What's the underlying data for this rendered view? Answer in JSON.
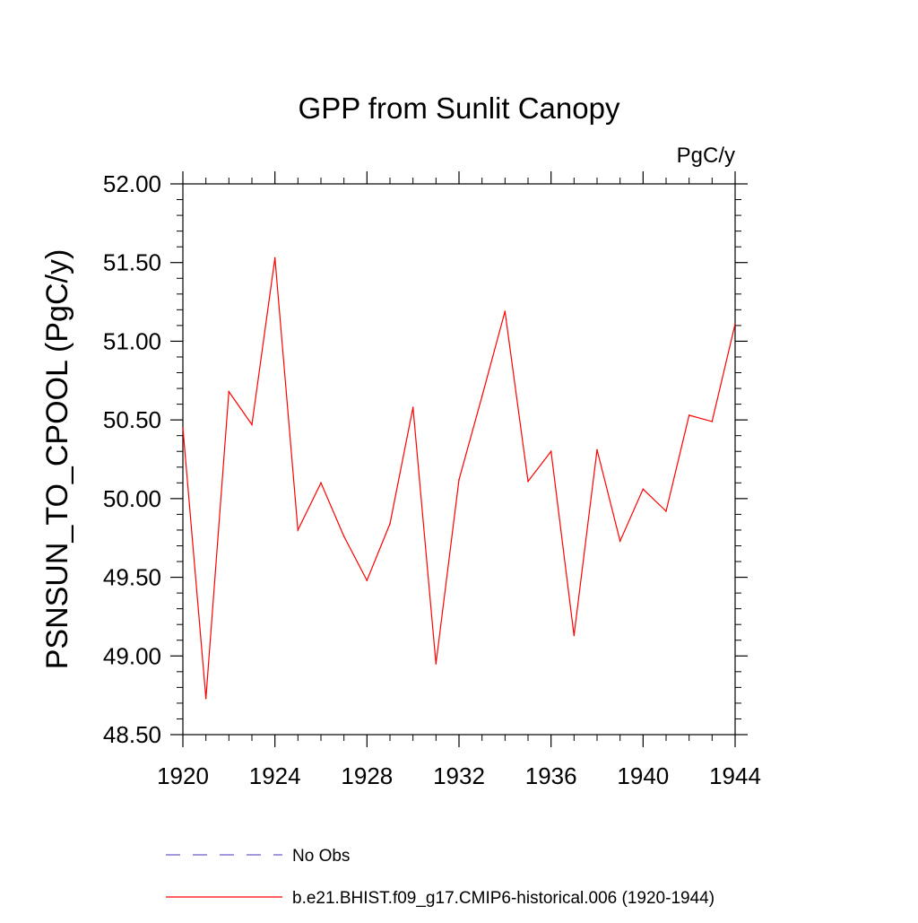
{
  "chart_data": {
    "type": "line",
    "title": "GPP from Sunlit Canopy",
    "units_label": "PgC/y",
    "xlabel": "",
    "ylabel": "PSNSUN_TO_CPOOL  (PgC/y)",
    "xlim": [
      1920,
      1944
    ],
    "ylim": [
      48.5,
      52.0
    ],
    "x_ticks": [
      1920,
      1924,
      1928,
      1932,
      1936,
      1940,
      1944
    ],
    "y_ticks": [
      "48.50",
      "49.00",
      "49.50",
      "50.00",
      "50.50",
      "51.00",
      "51.50",
      "52.00"
    ],
    "grid": false,
    "legend_position": "bottom",
    "series": [
      {
        "name": "b.e21.BHIST.f09_g17.CMIP6-historical.006 (1920-1944)",
        "color": "#ff0000",
        "style": "solid",
        "x": [
          1920,
          1921,
          1922,
          1923,
          1924,
          1925,
          1926,
          1927,
          1928,
          1929,
          1930,
          1931,
          1932,
          1933,
          1934,
          1935,
          1936,
          1937,
          1938,
          1939,
          1940,
          1941,
          1942,
          1943,
          1944
        ],
        "values": [
          50.45,
          48.73,
          50.68,
          50.47,
          51.53,
          49.8,
          50.1,
          49.76,
          49.48,
          49.84,
          50.58,
          48.95,
          50.12,
          50.65,
          51.19,
          50.11,
          50.3,
          49.13,
          50.31,
          49.73,
          50.06,
          49.92,
          50.53,
          50.49,
          51.11
        ]
      }
    ],
    "legend": [
      {
        "label": "No Obs",
        "color": "#6a5acd",
        "style": "dashed"
      },
      {
        "label": "b.e21.BHIST.f09_g17.CMIP6-historical.006 (1920-1944)",
        "color": "#ff0000",
        "style": "solid"
      }
    ]
  }
}
